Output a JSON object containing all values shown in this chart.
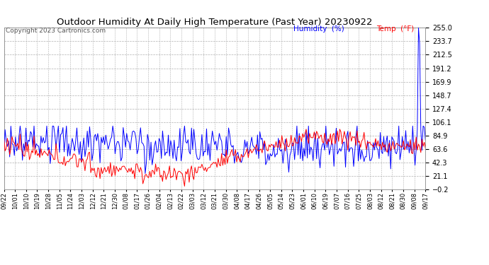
{
  "title": "Outdoor Humidity At Daily High Temperature (Past Year) 20230922",
  "copyright": "Copyright 2023 Cartronics.com",
  "legend_humidity": "Humidity  (%)",
  "legend_temp": "Temp  (°F)",
  "humidity_color": "#0000ff",
  "temp_color": "#ff0000",
  "background_color": "#ffffff",
  "plot_bg_color": "#ffffff",
  "grid_color": "#b0b0b0",
  "yticks": [
    255.0,
    233.7,
    212.5,
    191.2,
    169.9,
    148.7,
    127.4,
    106.1,
    84.9,
    63.6,
    42.3,
    21.1,
    -0.2
  ],
  "ylim": [
    -0.2,
    255.0
  ],
  "xtick_labels": [
    "09/22",
    "10/01",
    "10/10",
    "10/19",
    "10/28",
    "11/05",
    "11/24",
    "12/03",
    "12/12",
    "12/21",
    "12/30",
    "01/08",
    "01/17",
    "01/26",
    "02/04",
    "02/13",
    "02/22",
    "03/03",
    "03/12",
    "03/21",
    "03/30",
    "04/08",
    "04/17",
    "04/26",
    "05/05",
    "05/14",
    "05/23",
    "06/01",
    "06/10",
    "06/19",
    "07/07",
    "07/16",
    "07/25",
    "08/03",
    "08/12",
    "08/21",
    "08/30",
    "09/08",
    "09/17"
  ],
  "figsize": [
    6.9,
    3.75
  ],
  "dpi": 100
}
